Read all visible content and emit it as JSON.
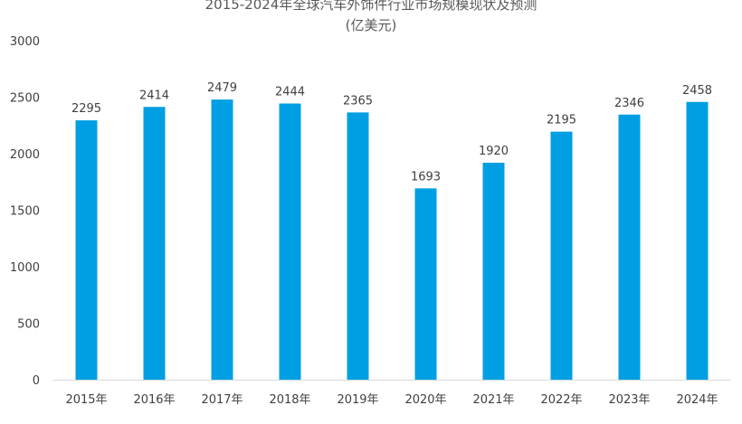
{
  "chart_data": {
    "type": "bar",
    "title": "2015-2024年全球汽车外饰件行业市场规模现状及预测",
    "subtitle": "(亿美元)",
    "categories": [
      "2015年",
      "2016年",
      "2017年",
      "2018年",
      "2019年",
      "2020年",
      "2021年",
      "2022年",
      "2023年",
      "2024年"
    ],
    "values": [
      2295,
      2414,
      2479,
      2444,
      2365,
      1693,
      1920,
      2195,
      2346,
      2458
    ],
    "ylim": [
      0,
      3000
    ],
    "yticks": [
      0,
      500,
      1000,
      1500,
      2000,
      2500,
      3000
    ],
    "xlabel": "",
    "ylabel": "",
    "grid": false,
    "data_labels": true,
    "bar_color": "#009FE3"
  }
}
